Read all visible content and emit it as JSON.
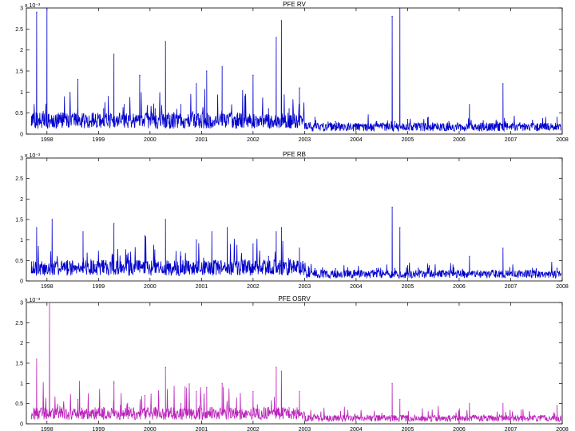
{
  "chart_data": [
    {
      "type": "line",
      "title": "PFE RV",
      "scale_label": "x 10⁻³",
      "ylim": [
        0,
        3
      ],
      "y_ticks": [
        "0",
        "0.5",
        "1",
        "1.5",
        "2",
        "2.5",
        "3"
      ],
      "xlim": [
        1997.6,
        2008.0
      ],
      "x_ticks": [
        "1998",
        "1999",
        "2000",
        "2001",
        "2002",
        "2003",
        "2004",
        "2005",
        "2006",
        "2007",
        "2008"
      ],
      "color": "#0000cc",
      "series": [
        {
          "x": [
            1997.7,
            1997.8,
            1997.95,
            1998.0,
            1998.3,
            1998.6,
            1998.9,
            1999.1,
            1999.3,
            1999.5,
            1999.8,
            2000.1,
            2000.3,
            2000.6,
            2000.9,
            2001.1,
            2001.4,
            2001.7,
            2002.0,
            2002.3,
            2002.45,
            2002.55,
            2002.7,
            2002.9,
            2003.2,
            2003.6,
            2004.0,
            2004.4,
            2004.7,
            2004.75,
            2004.85,
            2005.0,
            2005.4,
            2005.8,
            2006.2,
            2006.6,
            2006.85,
            2007.2,
            2007.6,
            2007.9
          ],
          "y": [
            0.3,
            2.9,
            0.4,
            3.0,
            0.5,
            1.3,
            0.5,
            0.6,
            1.9,
            0.7,
            1.4,
            0.6,
            2.2,
            0.7,
            1.2,
            1.5,
            1.6,
            0.5,
            1.4,
            0.6,
            2.3,
            2.7,
            0.6,
            1.1,
            0.4,
            0.3,
            0.25,
            0.3,
            2.8,
            0.3,
            3.0,
            0.35,
            0.4,
            0.3,
            0.7,
            0.25,
            1.2,
            0.2,
            0.25,
            0.4
          ]
        }
      ]
    },
    {
      "type": "line",
      "title": "PFE RB",
      "scale_label": "x 10⁻³",
      "ylim": [
        0,
        3
      ],
      "y_ticks": [
        "0",
        "0.5",
        "1",
        "1.5",
        "2",
        "2.5",
        "3"
      ],
      "xlim": [
        1997.6,
        2008.0
      ],
      "x_ticks": [
        "1998",
        "1999",
        "2000",
        "2001",
        "2002",
        "2003",
        "2004",
        "2005",
        "2006",
        "2007",
        "2008"
      ],
      "color": "#0000cc",
      "series": [
        {
          "x": [
            1997.7,
            1997.8,
            1997.95,
            1998.1,
            1998.4,
            1998.7,
            1998.95,
            1999.1,
            1999.3,
            1999.6,
            1999.9,
            2000.1,
            2000.3,
            2000.6,
            2000.9,
            2001.2,
            2001.5,
            2001.8,
            2002.0,
            2002.3,
            2002.45,
            2002.55,
            2002.7,
            2002.9,
            2003.2,
            2003.6,
            2004.0,
            2004.4,
            2004.7,
            2004.75,
            2004.85,
            2005.0,
            2005.4,
            2005.8,
            2006.2,
            2006.6,
            2006.85,
            2007.2,
            2007.6,
            2007.9
          ],
          "y": [
            0.2,
            1.3,
            0.3,
            1.5,
            0.4,
            1.2,
            0.4,
            0.5,
            1.4,
            0.5,
            1.1,
            0.5,
            1.5,
            0.6,
            1.0,
            1.2,
            1.3,
            0.5,
            0.9,
            0.6,
            1.2,
            1.3,
            0.5,
            0.8,
            0.3,
            0.3,
            0.2,
            0.3,
            1.8,
            0.3,
            1.3,
            0.35,
            0.3,
            0.25,
            0.6,
            0.2,
            0.8,
            0.2,
            0.2,
            0.3
          ]
        }
      ]
    },
    {
      "type": "line",
      "title": "PFE OSRV",
      "scale_label": "x 10⁻³",
      "ylim": [
        0,
        3
      ],
      "y_ticks": [
        "0",
        "0.5",
        "1",
        "1.5",
        "2",
        "2.5",
        "3"
      ],
      "xlim": [
        1997.6,
        2008.0
      ],
      "x_ticks": [
        "1998",
        "1999",
        "2000",
        "2001",
        "2002",
        "2003",
        "2004",
        "2005",
        "2006",
        "2007",
        "2008"
      ],
      "color": "#bb22bb",
      "series": [
        {
          "x": [
            1997.7,
            1997.8,
            1997.95,
            1998.05,
            1998.3,
            1998.6,
            1998.9,
            1999.1,
            1999.3,
            1999.6,
            1999.9,
            2000.1,
            2000.3,
            2000.6,
            2000.9,
            2001.1,
            2001.4,
            2001.7,
            2002.0,
            2002.3,
            2002.45,
            2002.55,
            2002.7,
            2002.9,
            2003.2,
            2003.6,
            2004.0,
            2004.4,
            2004.7,
            2004.75,
            2004.85,
            2005.0,
            2005.4,
            2005.8,
            2006.2,
            2006.6,
            2006.85,
            2007.2,
            2007.6,
            2007.9
          ],
          "y": [
            0.2,
            1.6,
            0.2,
            3.0,
            0.3,
            0.6,
            0.3,
            0.4,
            1.0,
            0.4,
            0.7,
            0.4,
            1.4,
            0.5,
            0.8,
            0.9,
            1.0,
            0.3,
            0.8,
            0.4,
            1.4,
            1.3,
            0.4,
            0.8,
            0.2,
            0.2,
            0.15,
            0.2,
            1.0,
            0.2,
            0.6,
            0.2,
            0.3,
            0.2,
            0.5,
            0.15,
            0.5,
            0.15,
            0.2,
            0.45
          ]
        }
      ]
    }
  ]
}
